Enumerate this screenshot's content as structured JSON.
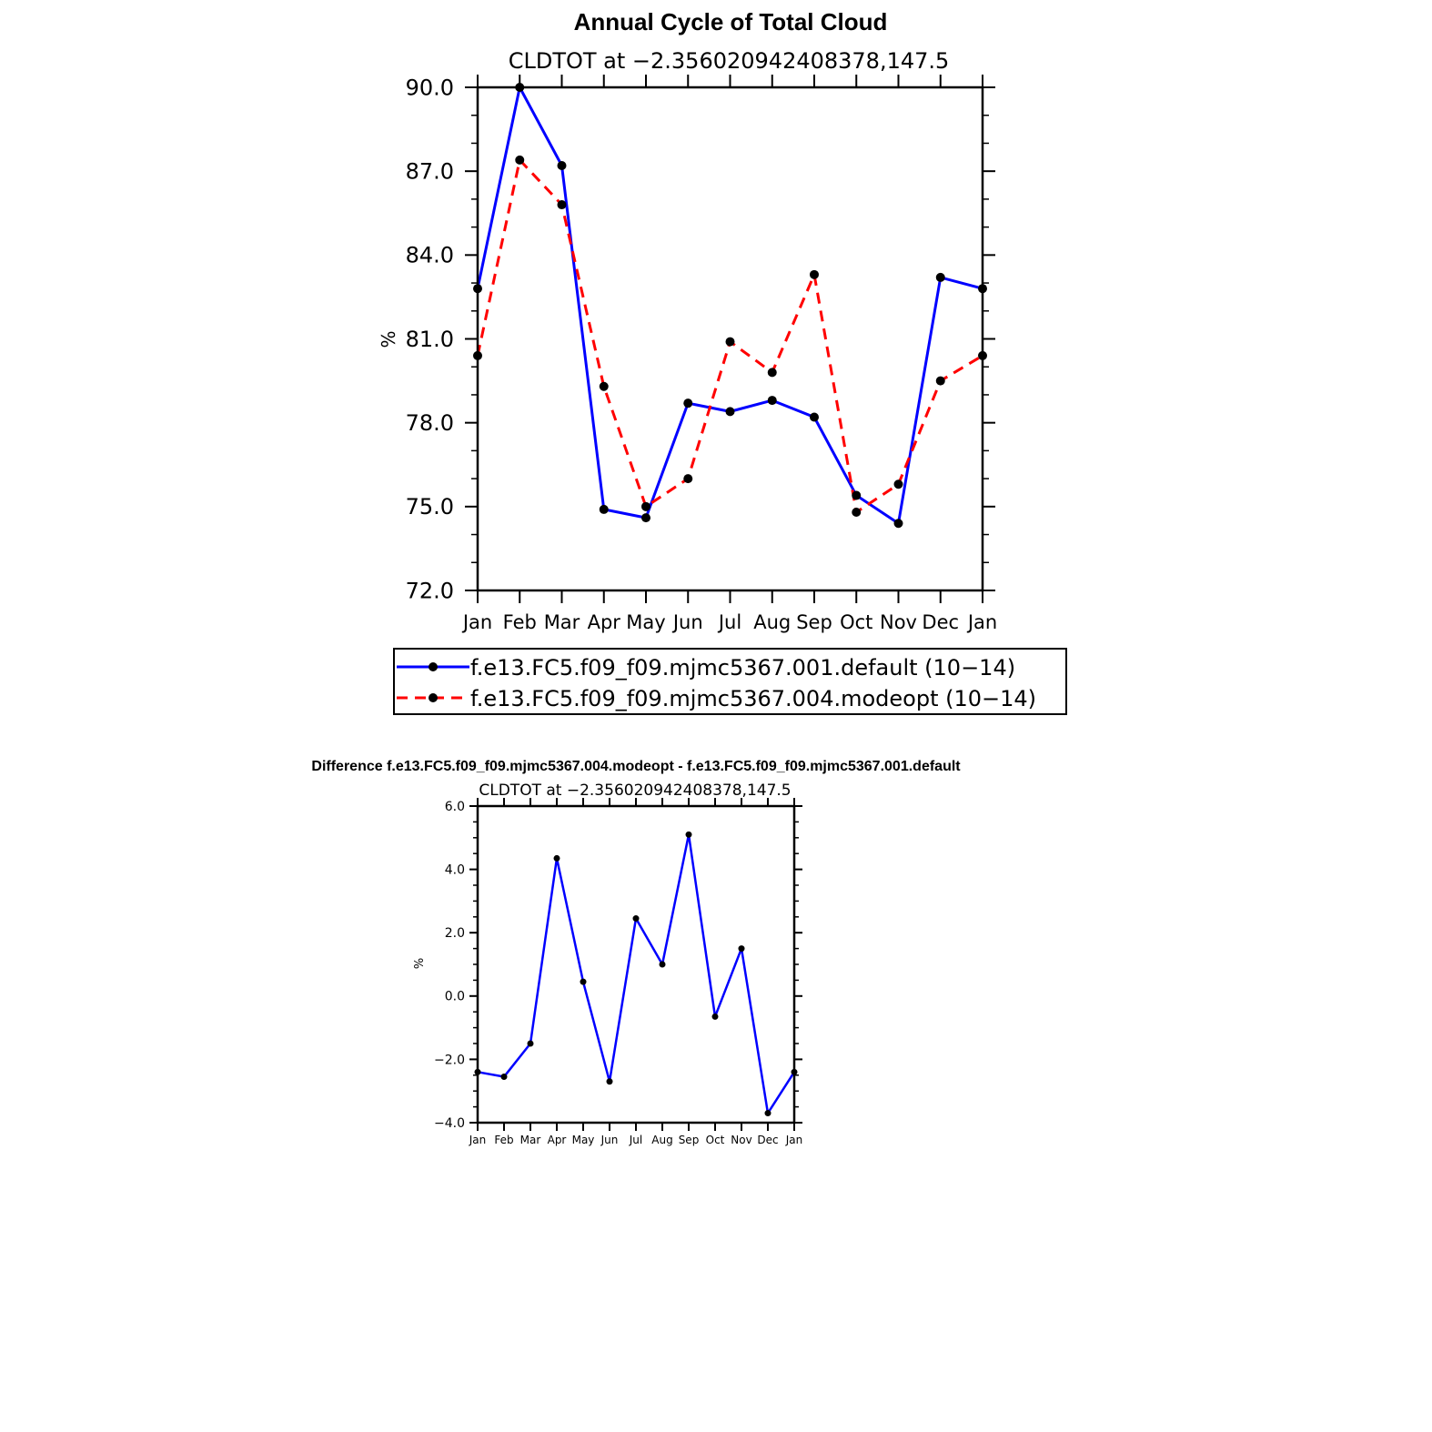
{
  "page": {
    "title": "Annual Cycle of Total Cloud",
    "diff_title": "Difference f.e13.FC5.f09_f09.mjmc5367.004.modeopt - f.e13.FC5.f09_f09.mjmc5367.001.default"
  },
  "chart_data": [
    {
      "type": "line",
      "title": "Annual Cycle of Total Cloud",
      "subtitle": "CLDTOT at −2.356020942408378,147.5",
      "xlabel": "",
      "ylabel": "%",
      "categories": [
        "Jan",
        "Feb",
        "Mar",
        "Apr",
        "May",
        "Jun",
        "Jul",
        "Aug",
        "Sep",
        "Oct",
        "Nov",
        "Dec",
        "Jan"
      ],
      "ylim": [
        72.0,
        90.0
      ],
      "yticks": [
        72.0,
        75.0,
        78.0,
        81.0,
        84.0,
        87.0,
        90.0
      ],
      "ytick_labels": [
        "72.0",
        "75.0",
        "78.0",
        "81.0",
        "84.0",
        "87.0",
        "90.0"
      ],
      "grid": false,
      "legend_position": "bottom",
      "series": [
        {
          "name": "f.e13.FC5.f09_f09.mjmc5367.001.default (10−14)",
          "color": "#0000ff",
          "dash": "solid",
          "values": [
            82.8,
            90.0,
            87.2,
            74.9,
            74.6,
            78.7,
            78.4,
            78.8,
            78.2,
            75.4,
            74.4,
            83.2,
            82.8
          ]
        },
        {
          "name": "f.e13.FC5.f09_f09.mjmc5367.004.modeopt (10−14)",
          "color": "#ff0000",
          "dash": "dashed",
          "values": [
            80.4,
            87.4,
            85.8,
            79.3,
            75.0,
            76.0,
            80.9,
            79.8,
            83.3,
            74.8,
            75.8,
            79.5,
            80.4
          ]
        }
      ]
    },
    {
      "type": "line",
      "title": "Difference f.e13.FC5.f09_f09.mjmc5367.004.modeopt - f.e13.FC5.f09_f09.mjmc5367.001.default",
      "subtitle": "CLDTOT at −2.356020942408378,147.5",
      "xlabel": "",
      "ylabel": "%",
      "categories": [
        "Jan",
        "Feb",
        "Mar",
        "Apr",
        "May",
        "Jun",
        "Jul",
        "Aug",
        "Sep",
        "Oct",
        "Nov",
        "Dec",
        "Jan"
      ],
      "ylim": [
        -4.0,
        6.0
      ],
      "yticks": [
        -4.0,
        -2.0,
        0.0,
        2.0,
        4.0,
        6.0
      ],
      "ytick_labels": [
        "−4.0",
        "−2.0",
        "0.0",
        "2.0",
        "4.0",
        "6.0"
      ],
      "grid": false,
      "series": [
        {
          "color": "#0000ff",
          "dash": "solid",
          "values": [
            -2.4,
            -2.55,
            -1.5,
            4.35,
            0.45,
            -2.7,
            2.45,
            1.0,
            5.1,
            -0.65,
            1.5,
            -3.7,
            -2.4
          ]
        }
      ]
    }
  ]
}
